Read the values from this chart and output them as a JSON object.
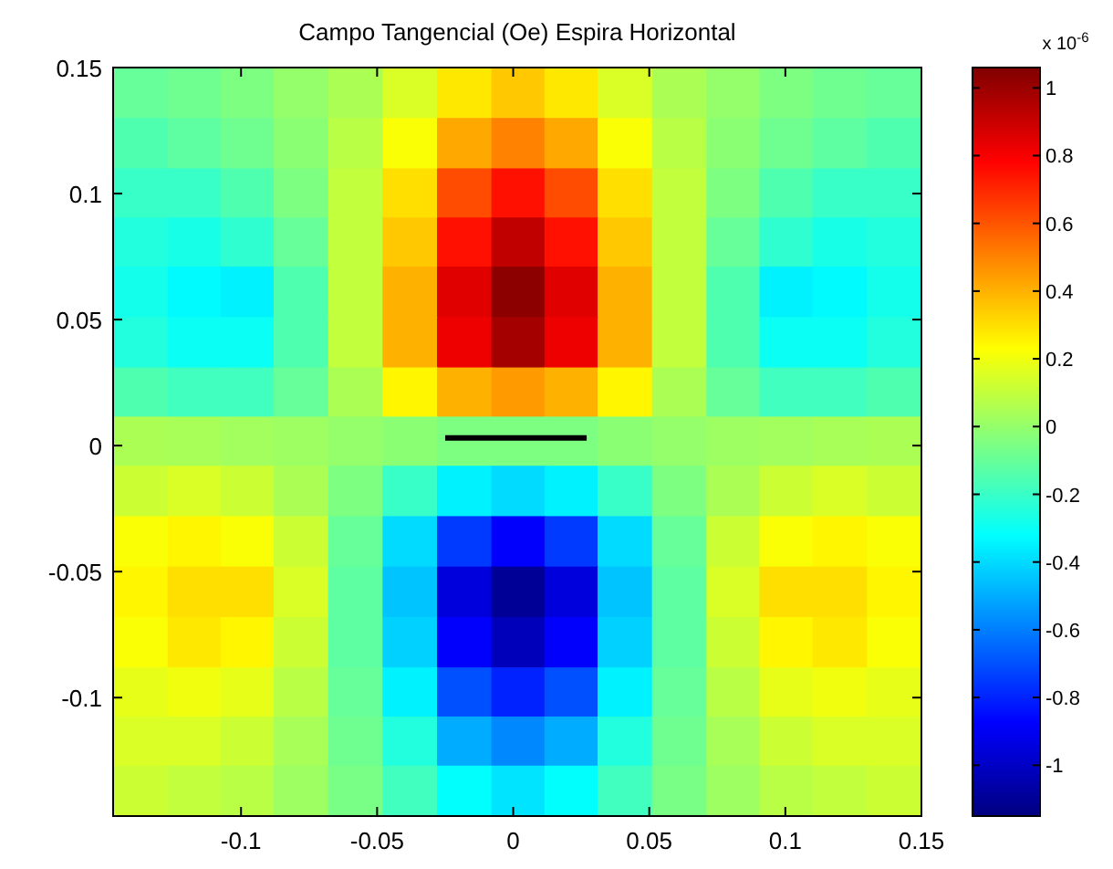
{
  "chart_data": {
    "type": "heatmap",
    "title": "Campo Tangencial (Oe) Espira Horizontal",
    "x": [
      -0.137,
      -0.117,
      -0.098,
      -0.078,
      -0.058,
      -0.038,
      -0.018,
      0.002,
      0.021,
      0.041,
      0.061,
      0.081,
      0.1,
      0.12,
      0.14
    ],
    "y": [
      0.14,
      0.12,
      0.1,
      0.081,
      0.061,
      0.041,
      0.021,
      0.002,
      -0.018,
      -0.038,
      -0.058,
      -0.078,
      -0.098,
      -0.117,
      -0.137
    ],
    "xlim": [
      -0.147,
      0.15
    ],
    "ylim": [
      -0.147,
      0.15
    ],
    "xticks": [
      -0.1,
      -0.05,
      0,
      0.05,
      0.1,
      0.15
    ],
    "yticks": [
      -0.1,
      -0.05,
      0,
      0.05,
      0.1,
      0.15
    ],
    "clim": [
      -1.15,
      1.06
    ],
    "cticks": [
      -1,
      -0.8,
      -0.6,
      -0.4,
      -0.2,
      0,
      0.2,
      0.4,
      0.6,
      0.8,
      1
    ],
    "clabel": "x 10$^{-6}$",
    "cells": [
      [
        -0.1,
        -0.08,
        -0.05,
        0,
        0.05,
        0.15,
        0.28,
        0.35,
        0.28,
        0.15,
        0.05,
        0,
        -0.05,
        -0.08,
        -0.1
      ],
      [
        -0.15,
        -0.12,
        -0.08,
        -0.02,
        0.08,
        0.22,
        0.42,
        0.5,
        0.42,
        0.22,
        0.08,
        -0.02,
        -0.08,
        -0.12,
        -0.15
      ],
      [
        -0.2,
        -0.2,
        -0.15,
        -0.05,
        0.1,
        0.3,
        0.62,
        0.75,
        0.62,
        0.3,
        0.1,
        -0.05,
        -0.15,
        -0.2,
        -0.2
      ],
      [
        -0.25,
        -0.27,
        -0.22,
        -0.1,
        0.1,
        0.35,
        0.75,
        0.92,
        0.75,
        0.35,
        0.1,
        -0.1,
        -0.22,
        -0.27,
        -0.25
      ],
      [
        -0.28,
        -0.33,
        -0.35,
        -0.15,
        0.1,
        0.4,
        0.85,
        1.03,
        0.85,
        0.4,
        0.1,
        -0.15,
        -0.35,
        -0.33,
        -0.28
      ],
      [
        -0.25,
        -0.3,
        -0.3,
        -0.15,
        0.1,
        0.4,
        0.82,
        0.98,
        0.82,
        0.4,
        0.1,
        -0.15,
        -0.3,
        -0.3,
        -0.25
      ],
      [
        -0.15,
        -0.18,
        -0.18,
        -0.1,
        0.05,
        0.25,
        0.4,
        0.45,
        0.4,
        0.25,
        0.05,
        -0.1,
        -0.18,
        -0.18,
        -0.15
      ],
      [
        0.05,
        0.04,
        0.03,
        0.02,
        0,
        -0.02,
        -0.05,
        -0.05,
        -0.05,
        -0.02,
        0,
        0.02,
        0.03,
        0.04,
        0.05
      ],
      [
        0.12,
        0.15,
        0.12,
        0.05,
        -0.05,
        -0.2,
        -0.35,
        -0.4,
        -0.35,
        -0.2,
        -0.05,
        0.05,
        0.12,
        0.15,
        0.12
      ],
      [
        0.22,
        0.25,
        0.22,
        0.12,
        -0.1,
        -0.4,
        -0.75,
        -0.88,
        -0.75,
        -0.4,
        -0.1,
        0.12,
        0.22,
        0.25,
        0.22
      ],
      [
        0.25,
        0.3,
        0.3,
        0.15,
        -0.12,
        -0.45,
        -0.95,
        -1.1,
        -0.95,
        -0.45,
        -0.12,
        0.15,
        0.3,
        0.3,
        0.25
      ],
      [
        0.22,
        0.28,
        0.25,
        0.12,
        -0.12,
        -0.42,
        -0.88,
        -1.02,
        -0.88,
        -0.42,
        -0.12,
        0.12,
        0.25,
        0.28,
        0.22
      ],
      [
        0.18,
        0.2,
        0.18,
        0.08,
        -0.1,
        -0.35,
        -0.7,
        -0.8,
        -0.7,
        -0.35,
        -0.1,
        0.08,
        0.18,
        0.2,
        0.18
      ],
      [
        0.15,
        0.15,
        0.12,
        0.04,
        -0.08,
        -0.25,
        -0.5,
        -0.58,
        -0.5,
        -0.25,
        -0.08,
        0.04,
        0.12,
        0.15,
        0.15
      ],
      [
        0.12,
        0.1,
        0.08,
        0.02,
        -0.06,
        -0.18,
        -0.32,
        -0.38,
        -0.32,
        -0.18,
        -0.06,
        0.02,
        0.08,
        0.1,
        0.12
      ]
    ],
    "series": [
      {
        "type": "line",
        "x": [
          -0.025,
          0.027
        ],
        "values": [
          0.003,
          0.003
        ],
        "color": "#000000"
      }
    ]
  }
}
